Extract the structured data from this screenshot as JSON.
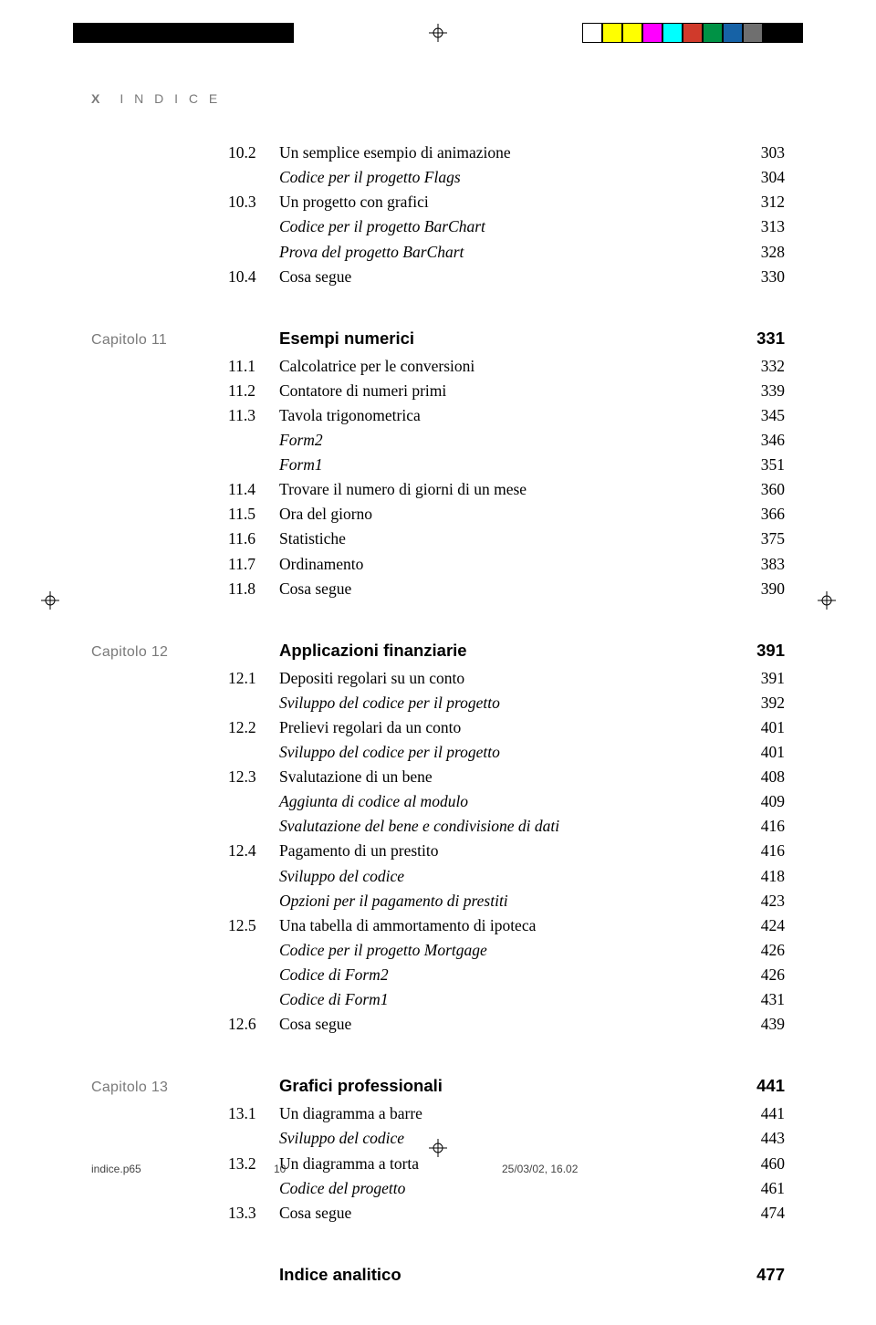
{
  "colorbar_left": [
    "#000000",
    "#000000",
    "#000000",
    "#000000",
    "#000000",
    "#000000",
    "#000000",
    "#000000",
    "#000000",
    "#000000",
    "#000000"
  ],
  "colorbar_right": [
    "#ffffff",
    "#ffff00",
    "#ffff00",
    "#ff00ff",
    "#00ffff",
    "#d03a2b",
    "#009245",
    "#1662a6",
    "#6f6f6f",
    "#000000",
    "#000000"
  ],
  "running_head": {
    "marker": "X",
    "text": "I N D I C E"
  },
  "blocks": [
    {
      "chapter": "",
      "entries": [
        {
          "num": "10.2",
          "text": "Un semplice esempio di animazione",
          "page": "303"
        },
        {
          "num": "",
          "text": "Codice per il progetto Flags",
          "page": "304",
          "italic": true
        },
        {
          "num": "10.3",
          "text": "Un progetto con grafici",
          "page": "312"
        },
        {
          "num": "",
          "text": "Codice per il progetto BarChart",
          "page": "313",
          "italic": true
        },
        {
          "num": "",
          "text": "Prova del progetto BarChart",
          "page": "328",
          "italic": true
        },
        {
          "num": "10.4",
          "text": "Cosa segue",
          "page": "330"
        }
      ]
    },
    {
      "chapter": "Capitolo 11",
      "heading": {
        "text": "Esempi numerici",
        "page": "331"
      },
      "entries": [
        {
          "num": "11.1",
          "text": "Calcolatrice per le conversioni",
          "page": "332"
        },
        {
          "num": "11.2",
          "text": "Contatore di numeri primi",
          "page": "339"
        },
        {
          "num": "11.3",
          "text": "Tavola trigonometrica",
          "page": "345"
        },
        {
          "num": "",
          "text": "Form2",
          "page": "346",
          "italic": true
        },
        {
          "num": "",
          "text": "Form1",
          "page": "351",
          "italic": true
        },
        {
          "num": "11.4",
          "text": "Trovare il numero di giorni di un mese",
          "page": "360"
        },
        {
          "num": "11.5",
          "text": "Ora del giorno",
          "page": "366"
        },
        {
          "num": "11.6",
          "text": "Statistiche",
          "page": "375"
        },
        {
          "num": "11.7",
          "text": "Ordinamento",
          "page": "383"
        },
        {
          "num": "11.8",
          "text": "Cosa segue",
          "page": "390"
        }
      ]
    },
    {
      "chapter": "Capitolo 12",
      "heading": {
        "text": "Applicazioni finanziarie",
        "page": "391"
      },
      "entries": [
        {
          "num": "12.1",
          "text": "Depositi regolari su un conto",
          "page": "391"
        },
        {
          "num": "",
          "text": "Sviluppo del codice per il progetto",
          "page": "392",
          "italic": true
        },
        {
          "num": "12.2",
          "text": "Prelievi regolari da un conto",
          "page": "401"
        },
        {
          "num": "",
          "text": "Sviluppo del codice per il progetto",
          "page": "401",
          "italic": true
        },
        {
          "num": "12.3",
          "text": "Svalutazione di un bene",
          "page": "408"
        },
        {
          "num": "",
          "text": "Aggiunta di codice al modulo",
          "page": "409",
          "italic": true
        },
        {
          "num": "",
          "text": "Svalutazione del bene e condivisione di dati",
          "page": "416",
          "italic": true
        },
        {
          "num": "12.4",
          "text": "Pagamento di un prestito",
          "page": "416"
        },
        {
          "num": "",
          "text": "Sviluppo del codice",
          "page": "418",
          "italic": true
        },
        {
          "num": "",
          "text": "Opzioni per il pagamento di prestiti",
          "page": "423",
          "italic": true
        },
        {
          "num": "12.5",
          "text": "Una tabella di ammortamento di ipoteca",
          "page": "424"
        },
        {
          "num": "",
          "text": "Codice per il progetto Mortgage",
          "page": "426",
          "italic": true
        },
        {
          "num": "",
          "text": "Codice di Form2",
          "page": "426",
          "italic": true
        },
        {
          "num": "",
          "text": "Codice di Form1",
          "page": "431",
          "italic": true
        },
        {
          "num": "12.6",
          "text": "Cosa segue",
          "page": "439"
        }
      ]
    },
    {
      "chapter": "Capitolo 13",
      "heading": {
        "text": "Grafici professionali",
        "page": "441"
      },
      "entries": [
        {
          "num": "13.1",
          "text": "Un diagramma a barre",
          "page": "441"
        },
        {
          "num": "",
          "text": "Sviluppo del codice",
          "page": "443",
          "italic": true
        },
        {
          "num": "13.2",
          "text": "Un diagramma a torta",
          "page": "460"
        },
        {
          "num": "",
          "text": "Codice del progetto",
          "page": "461",
          "italic": true
        },
        {
          "num": "13.3",
          "text": "Cosa segue",
          "page": "474"
        }
      ]
    },
    {
      "chapter": "",
      "heading": {
        "text": "Indice analitico",
        "page": "477"
      },
      "entries": []
    }
  ],
  "footer": {
    "filename": "indice.p65",
    "pagenum": "10",
    "timestamp": "25/03/02, 16.02"
  }
}
